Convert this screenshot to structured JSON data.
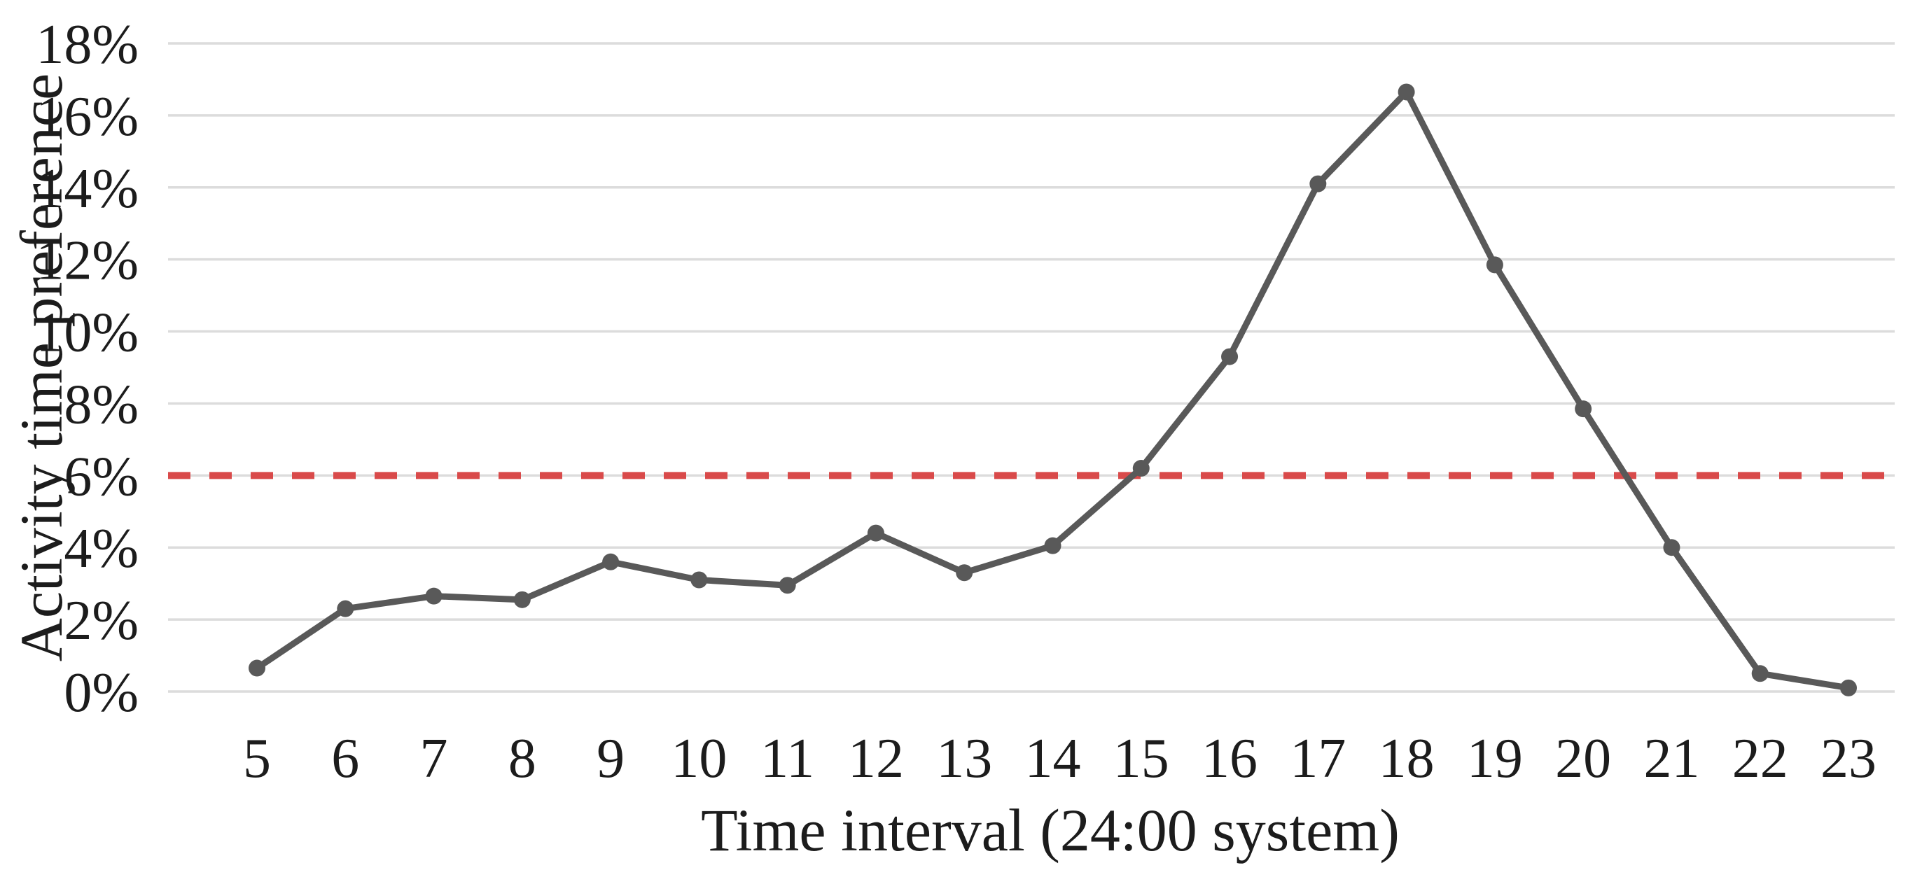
{
  "chart_data": {
    "type": "line",
    "title": "",
    "xlabel": "Time interval (24:00 system)",
    "ylabel": "Activity time preference",
    "x": [
      5,
      6,
      7,
      8,
      9,
      10,
      11,
      12,
      13,
      14,
      15,
      16,
      17,
      18,
      19,
      20,
      21,
      22,
      23
    ],
    "series": [
      {
        "name": "Activity time preference",
        "color": "#595959",
        "marker": "circle",
        "values": [
          0.65,
          2.3,
          2.65,
          2.55,
          3.6,
          3.1,
          2.95,
          4.4,
          3.3,
          4.05,
          6.2,
          9.3,
          14.1,
          16.65,
          11.85,
          7.85,
          4.0,
          0.5,
          0.1
        ]
      }
    ],
    "reference_line": {
      "value": 6.0,
      "color": "#d94a4a",
      "style": "dashed"
    },
    "ylim": [
      0,
      18
    ],
    "ytick_step": 2,
    "yticks": [
      "0%",
      "2%",
      "4%",
      "6%",
      "8%",
      "10%",
      "12%",
      "14%",
      "16%",
      "18%"
    ],
    "xticks": [
      "5",
      "6",
      "7",
      "8",
      "9",
      "10",
      "11",
      "12",
      "13",
      "14",
      "15",
      "16",
      "17",
      "18",
      "19",
      "20",
      "21",
      "22",
      "23"
    ],
    "grid": "horizontal",
    "gridline_color": "#dcdcdc",
    "legend": "none",
    "background": "#ffffff",
    "text_color": "#1c1c1c"
  }
}
